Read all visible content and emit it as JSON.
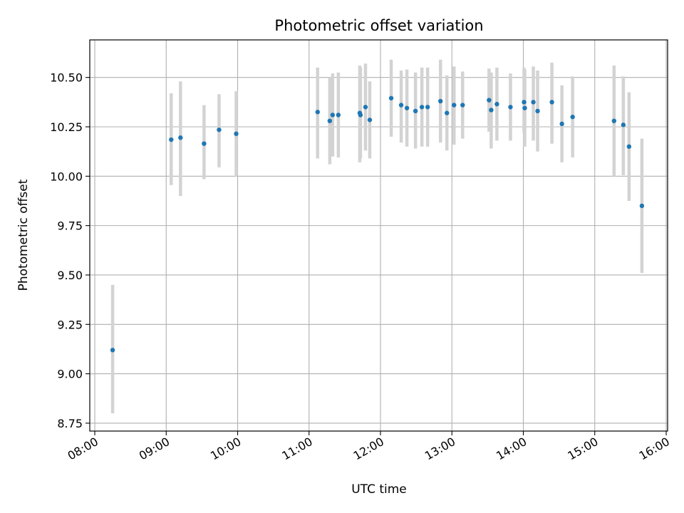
{
  "chart_data": {
    "type": "scatter",
    "title": "Photometric offset variation",
    "xlabel": "UTC time",
    "ylabel": "Photometric offset",
    "xlim_hours": [
      7.93,
      16.02
    ],
    "ylim": [
      8.71,
      10.69
    ],
    "grid": true,
    "x_ticks": [
      {
        "h": 8,
        "label": "08:00"
      },
      {
        "h": 9,
        "label": "09:00"
      },
      {
        "h": 10,
        "label": "10:00"
      },
      {
        "h": 11,
        "label": "11:00"
      },
      {
        "h": 12,
        "label": "12:00"
      },
      {
        "h": 13,
        "label": "13:00"
      },
      {
        "h": 14,
        "label": "14:00"
      },
      {
        "h": 15,
        "label": "15:00"
      },
      {
        "h": 16,
        "label": "16:00"
      }
    ],
    "y_ticks": [
      {
        "v": 8.75,
        "label": "8.75"
      },
      {
        "v": 9.0,
        "label": "9.00"
      },
      {
        "v": 9.25,
        "label": "9.25"
      },
      {
        "v": 9.5,
        "label": "9.50"
      },
      {
        "v": 9.75,
        "label": "9.75"
      },
      {
        "v": 10.0,
        "label": "10.00"
      },
      {
        "v": 10.25,
        "label": "10.25"
      },
      {
        "v": 10.5,
        "label": "10.50"
      }
    ],
    "colors": {
      "point": "#1f77b4",
      "errorbar": "#d3d3d3",
      "grid": "#b0b0b0",
      "axis": "#000000"
    },
    "points": [
      {
        "t": 8.25,
        "y": 9.12,
        "lo": 8.8,
        "hi": 9.45
      },
      {
        "t": 9.07,
        "y": 10.185,
        "lo": 9.955,
        "hi": 10.42
      },
      {
        "t": 9.2,
        "y": 10.195,
        "lo": 9.9,
        "hi": 10.48
      },
      {
        "t": 9.53,
        "y": 10.165,
        "lo": 9.985,
        "hi": 10.36
      },
      {
        "t": 9.74,
        "y": 10.235,
        "lo": 10.045,
        "hi": 10.415
      },
      {
        "t": 9.98,
        "y": 10.215,
        "lo": 10.0,
        "hi": 10.43
      },
      {
        "t": 11.12,
        "y": 10.325,
        "lo": 10.09,
        "hi": 10.55
      },
      {
        "t": 11.29,
        "y": 10.28,
        "lo": 10.06,
        "hi": 10.5
      },
      {
        "t": 11.33,
        "y": 10.31,
        "lo": 10.1,
        "hi": 10.52
      },
      {
        "t": 11.41,
        "y": 10.31,
        "lo": 10.095,
        "hi": 10.525
      },
      {
        "t": 11.71,
        "y": 10.32,
        "lo": 10.07,
        "hi": 10.56
      },
      {
        "t": 11.72,
        "y": 10.31,
        "lo": 10.09,
        "hi": 10.55
      },
      {
        "t": 11.79,
        "y": 10.35,
        "lo": 10.13,
        "hi": 10.57
      },
      {
        "t": 11.85,
        "y": 10.285,
        "lo": 10.09,
        "hi": 10.48
      },
      {
        "t": 12.15,
        "y": 10.395,
        "lo": 10.2,
        "hi": 10.59
      },
      {
        "t": 12.29,
        "y": 10.36,
        "lo": 10.17,
        "hi": 10.535
      },
      {
        "t": 12.37,
        "y": 10.345,
        "lo": 10.15,
        "hi": 10.54
      },
      {
        "t": 12.49,
        "y": 10.33,
        "lo": 10.14,
        "hi": 10.525
      },
      {
        "t": 12.58,
        "y": 10.35,
        "lo": 10.15,
        "hi": 10.55
      },
      {
        "t": 12.66,
        "y": 10.35,
        "lo": 10.15,
        "hi": 10.55
      },
      {
        "t": 12.84,
        "y": 10.38,
        "lo": 10.17,
        "hi": 10.59
      },
      {
        "t": 12.93,
        "y": 10.32,
        "lo": 10.13,
        "hi": 10.51
      },
      {
        "t": 13.03,
        "y": 10.36,
        "lo": 10.16,
        "hi": 10.555
      },
      {
        "t": 13.15,
        "y": 10.36,
        "lo": 10.19,
        "hi": 10.53
      },
      {
        "t": 13.52,
        "y": 10.385,
        "lo": 10.225,
        "hi": 10.545
      },
      {
        "t": 13.55,
        "y": 10.335,
        "lo": 10.14,
        "hi": 10.525
      },
      {
        "t": 13.63,
        "y": 10.365,
        "lo": 10.18,
        "hi": 10.55
      },
      {
        "t": 13.82,
        "y": 10.35,
        "lo": 10.18,
        "hi": 10.52
      },
      {
        "t": 14.01,
        "y": 10.375,
        "lo": 10.22,
        "hi": 10.55
      },
      {
        "t": 14.02,
        "y": 10.345,
        "lo": 10.15,
        "hi": 10.54
      },
      {
        "t": 14.14,
        "y": 10.375,
        "lo": 10.18,
        "hi": 10.555
      },
      {
        "t": 14.2,
        "y": 10.33,
        "lo": 10.125,
        "hi": 10.535
      },
      {
        "t": 14.4,
        "y": 10.375,
        "lo": 10.165,
        "hi": 10.575
      },
      {
        "t": 14.54,
        "y": 10.265,
        "lo": 10.07,
        "hi": 10.46
      },
      {
        "t": 14.69,
        "y": 10.3,
        "lo": 10.095,
        "hi": 10.505
      },
      {
        "t": 15.27,
        "y": 10.28,
        "lo": 10.0,
        "hi": 10.56
      },
      {
        "t": 15.4,
        "y": 10.26,
        "lo": 10.005,
        "hi": 10.505
      },
      {
        "t": 15.48,
        "y": 10.15,
        "lo": 9.875,
        "hi": 10.425
      },
      {
        "t": 15.66,
        "y": 9.85,
        "lo": 9.51,
        "hi": 10.19
      }
    ]
  }
}
